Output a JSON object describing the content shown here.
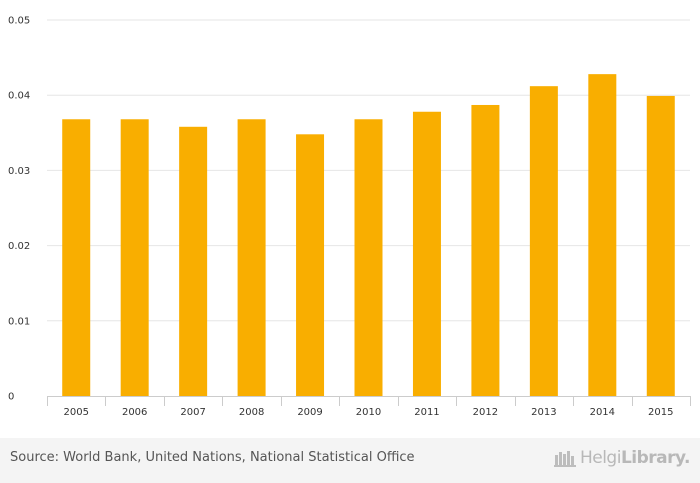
{
  "chart_data": {
    "type": "bar",
    "title": "",
    "xlabel": "",
    "ylabel": "",
    "categories": [
      "2005",
      "2006",
      "2007",
      "2008",
      "2009",
      "2010",
      "2011",
      "2012",
      "2013",
      "2014",
      "2015"
    ],
    "values": [
      0.0368,
      0.0368,
      0.0358,
      0.0368,
      0.0348,
      0.0368,
      0.0378,
      0.0387,
      0.0412,
      0.0428,
      0.0399
    ],
    "ylim": [
      0,
      0.05
    ],
    "yticks": [
      0,
      0.01,
      0.02,
      0.03,
      0.04,
      0.05
    ],
    "ytick_labels": [
      "0",
      "0.01",
      "0.02",
      "0.03",
      "0.04",
      "0.05"
    ],
    "grid": true,
    "bar_color": "#f9ae00"
  },
  "footer": {
    "source": "Source: World Bank, United Nations, National Statistical Office",
    "brand_part1": "Helgi",
    "brand_part2": "Library."
  },
  "colors": {
    "bar": "#f9ae00",
    "grid": "#e6e6e6",
    "footer_bg": "#f4f4f4",
    "brand": "#b8b8b8"
  }
}
